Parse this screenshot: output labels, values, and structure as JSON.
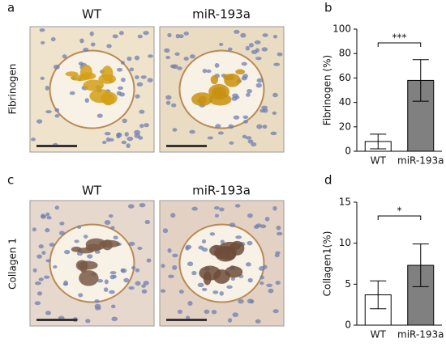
{
  "figure": {
    "panel_labels": [
      "a",
      "b",
      "c",
      "d"
    ],
    "column_labels": [
      "WT",
      "miR-193a",
      "WT",
      "miR-193a"
    ],
    "row_labels": [
      "Fibrinogen",
      "Collagen 1"
    ]
  },
  "chart_data": [
    {
      "type": "bar",
      "ylabel": "Fibrinogen (%)",
      "categories": [
        "WT",
        "miR-193a"
      ],
      "values": [
        8,
        58
      ],
      "errors": [
        6,
        17
      ],
      "colors": [
        "#ffffff",
        "#808080"
      ],
      "ylim": [
        0,
        100
      ],
      "yticks": [
        0,
        20,
        40,
        60,
        80,
        100
      ],
      "significance": "***"
    },
    {
      "type": "bar",
      "ylabel": "Collagen1(%)",
      "categories": [
        "WT",
        "miR-193a"
      ],
      "values": [
        3.7,
        7.3
      ],
      "errors": [
        1.7,
        2.6
      ],
      "colors": [
        "#ffffff",
        "#808080"
      ],
      "ylim": [
        0,
        15
      ],
      "yticks": [
        0,
        5,
        10,
        15
      ],
      "significance": "*"
    }
  ]
}
